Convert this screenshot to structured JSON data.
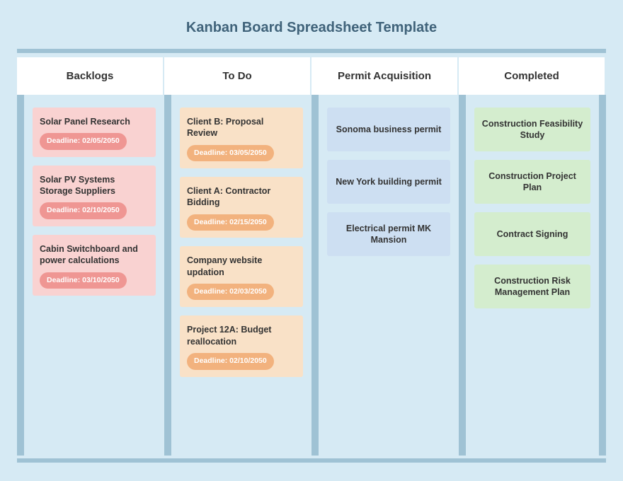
{
  "title": "Kanban Board Spreadsheet Template",
  "colors": {
    "page_bg": "#d6eaf4",
    "accent": "#9fc2d4",
    "title": "#40637a",
    "header_bg": "#ffffff",
    "card_pink": "#f9d2d1",
    "card_peach": "#f9e1c7",
    "card_blue": "#cddff2",
    "card_green": "#d4edce",
    "badge_pink": "#ef9693",
    "badge_orange": "#f2b27e"
  },
  "columns": [
    {
      "id": "backlogs",
      "title": "Backlogs",
      "card_bg": "#f9d2d1",
      "badge_bg": "#ef9693",
      "cards": [
        {
          "title": "Solar Panel Research",
          "deadline": "Deadline: 02/05/2050"
        },
        {
          "title": "Solar PV Systems Storage Suppliers",
          "deadline": "Deadline: 02/10/2050"
        },
        {
          "title": "Cabin Switchboard and power calculations",
          "deadline": "Deadline: 03/10/2050"
        }
      ]
    },
    {
      "id": "todo",
      "title": "To Do",
      "card_bg": "#f9e1c7",
      "badge_bg": "#f2b27e",
      "cards": [
        {
          "title": "Client B: Proposal Review",
          "deadline": "Deadline: 03/05/2050"
        },
        {
          "title": "Client A: Contractor Bidding",
          "deadline": "Deadline: 02/15/2050"
        },
        {
          "title": "Company website updation",
          "deadline": "Deadline: 02/03/2050"
        },
        {
          "title": "Project 12A: Budget reallocation",
          "deadline": "Deadline: 02/10/2050"
        }
      ]
    },
    {
      "id": "permit",
      "title": "Permit Acquisition",
      "card_bg": "#cddff2",
      "cards": [
        {
          "title": "Sonoma business permit"
        },
        {
          "title": "New York building permit"
        },
        {
          "title": "Electrical permit MK Mansion"
        }
      ]
    },
    {
      "id": "completed",
      "title": "Completed",
      "card_bg": "#d4edce",
      "cards": [
        {
          "title": "Construction Feasibility Study"
        },
        {
          "title": "Construction Project Plan"
        },
        {
          "title": "Contract Signing"
        },
        {
          "title": "Construction Risk Management Plan"
        }
      ]
    }
  ]
}
